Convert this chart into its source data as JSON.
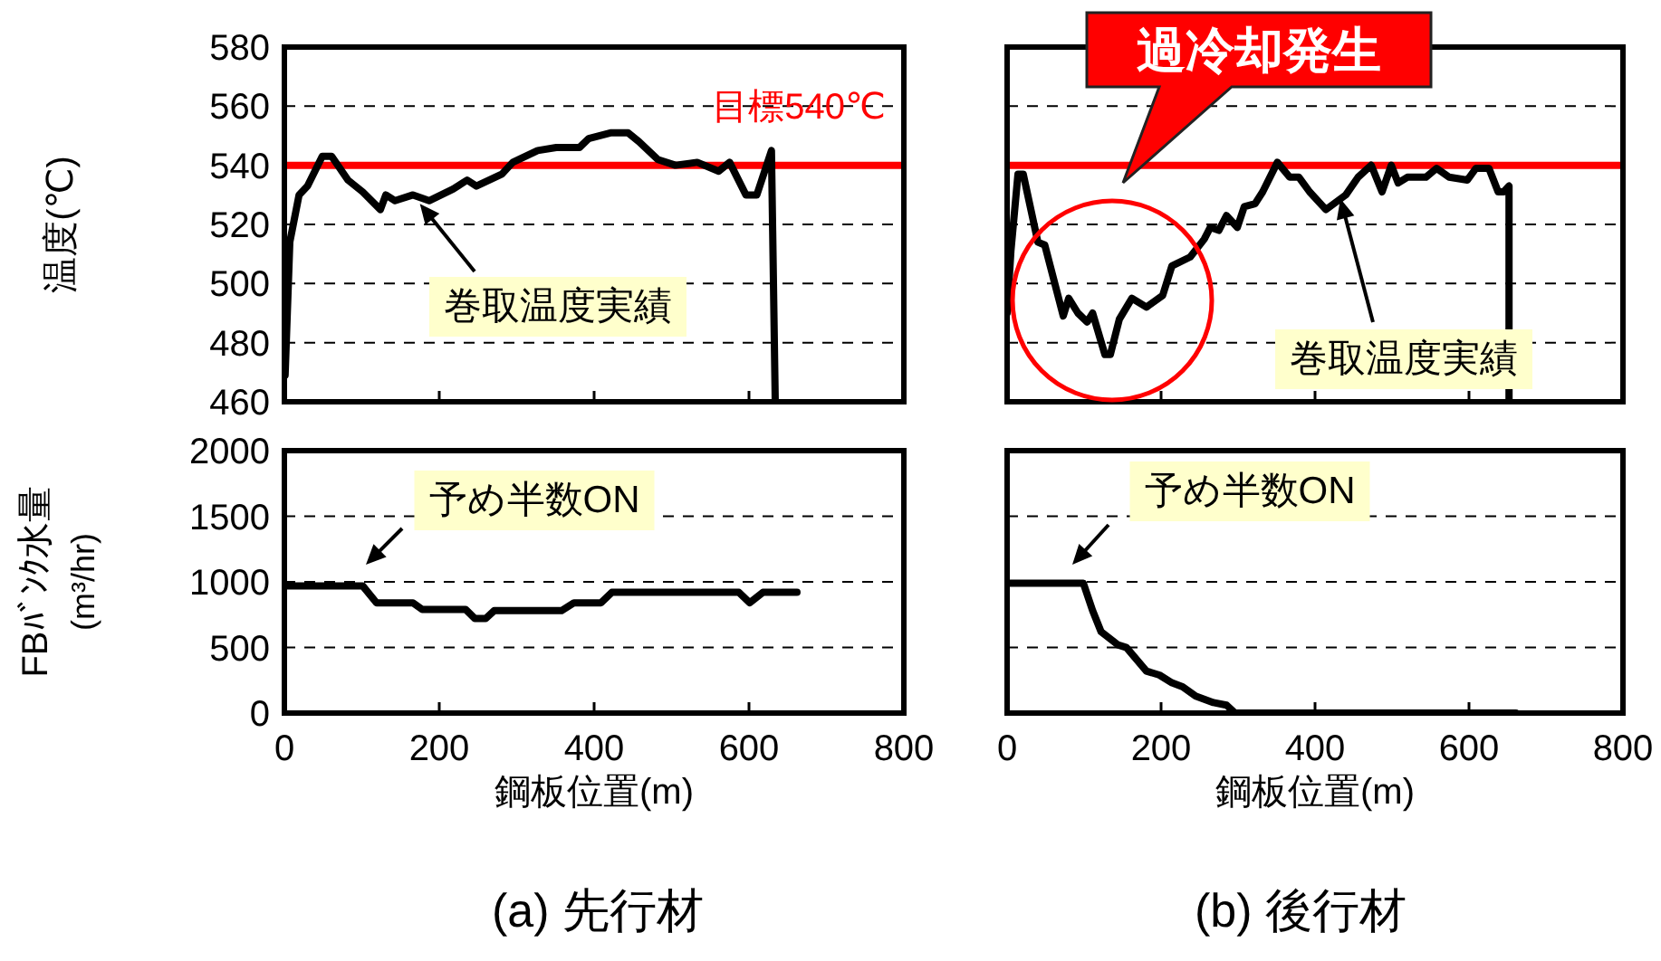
{
  "chart_data": [
    {
      "type": "line",
      "ylabel": "温度(℃)",
      "xlim": [
        0,
        800
      ],
      "xticks": [
        0,
        200,
        400,
        600,
        800
      ],
      "ylim": [
        460,
        580
      ],
      "yticks": [
        460,
        480,
        500,
        520,
        540,
        560,
        580
      ],
      "grid": "y",
      "tick_labels": "y",
      "series": [
        {
          "color": "#000000",
          "x": [
            1,
            7,
            19,
            30,
            49,
            61,
            82,
            101,
            124,
            131,
            143,
            166,
            187,
            218,
            236,
            248,
            281,
            295,
            327,
            351,
            381,
            393,
            421,
            444,
            458,
            482,
            505,
            533,
            561,
            575,
            596,
            610,
            629,
            634
          ],
          "values": [
            469,
            514,
            530,
            533,
            543,
            543,
            535,
            531,
            525,
            530,
            528,
            530,
            528,
            532,
            535,
            533,
            537,
            541,
            545,
            546,
            546,
            549,
            551,
            551,
            548,
            542,
            540,
            541,
            538,
            541,
            530,
            530,
            545,
            460
          ]
        }
      ],
      "ref_lines": [
        {
          "axis": "y",
          "value": 540,
          "label": "目標540℃",
          "color": "#ff0000"
        }
      ],
      "annotations": [
        {
          "text": "巻取温度実績",
          "x": 175,
          "y": 527
        }
      ]
    },
    {
      "type": "line",
      "xlim": [
        0,
        800
      ],
      "xticks": [
        0,
        200,
        400,
        600,
        800
      ],
      "ylim": [
        460,
        580
      ],
      "yticks": [
        460,
        480,
        500,
        520,
        540,
        560,
        580
      ],
      "grid": "y",
      "tick_labels": false,
      "series": [
        {
          "color": "#000000",
          "x": [
            0,
            5,
            14,
            21,
            40,
            49,
            73,
            80,
            92,
            104,
            111,
            127,
            134,
            146,
            162,
            181,
            202,
            214,
            238,
            256,
            264,
            275,
            285,
            299,
            308,
            322,
            332,
            351,
            367,
            379,
            393,
            414,
            440,
            456,
            473,
            487,
            499,
            508,
            520,
            544,
            558,
            574,
            598,
            609,
            626,
            638,
            645,
            652,
            652
          ],
          "values": [
            490,
            511,
            537,
            537,
            514,
            513,
            489,
            495,
            490,
            487,
            490,
            476,
            476,
            488,
            495,
            492,
            496,
            506,
            509,
            515,
            519,
            518,
            523,
            519,
            526,
            527,
            531,
            541,
            536,
            536,
            531,
            525,
            530,
            536,
            540,
            531,
            540,
            534,
            536,
            536,
            539,
            536,
            535,
            539,
            539,
            531,
            531,
            533,
            460
          ]
        }
      ],
      "ref_lines": [
        {
          "axis": "y",
          "value": 540,
          "color": "#ff0000"
        }
      ],
      "annotations": [
        {
          "text": "巻取温度実績",
          "x": 433,
          "y": 528.7
        },
        "過冷却発生"
      ]
    },
    {
      "type": "line",
      "xlabel": "鋼板位置(m)",
      "ylabel": "FBﾊﾞﾝｸ水量(m³/hr)",
      "xlim": [
        0,
        800
      ],
      "xticks": [
        0,
        200,
        400,
        600,
        800
      ],
      "ylim": [
        0,
        2000
      ],
      "yticks": [
        0,
        500,
        1000,
        1500,
        2000
      ],
      "grid": "y",
      "series": [
        {
          "color": "#000000",
          "x": [
            0,
            101,
            119,
            166,
            178,
            234,
            246,
            260,
            271,
            358,
            374,
            409,
            423,
            587,
            601,
            618,
            662
          ],
          "values": [
            970,
            970,
            840,
            840,
            790,
            790,
            720,
            720,
            780,
            780,
            840,
            840,
            920,
            920,
            840,
            920,
            920
          ]
        }
      ],
      "annotations": [
        "予め半数ON",
        "(a) 先行材"
      ]
    },
    {
      "type": "line",
      "xlabel": "鋼板位置(m)",
      "xlim": [
        0,
        800
      ],
      "xticks": [
        0,
        200,
        400,
        600,
        800
      ],
      "ylim": [
        0,
        2000
      ],
      "yticks": [
        0,
        500,
        1000,
        1500,
        2000
      ],
      "grid": "y",
      "tick_labels": "x",
      "series": [
        {
          "color": "#000000",
          "x": [
            0,
            99,
            111,
            122,
            144,
            155,
            181,
            198,
            214,
            228,
            245,
            268,
            285,
            296,
            661
          ],
          "values": [
            990,
            990,
            780,
            620,
            520,
            500,
            320,
            290,
            230,
            200,
            130,
            80,
            60,
            0,
            0
          ]
        }
      ],
      "annotations": [
        "予め半数ON",
        "(b) 後行材"
      ]
    }
  ]
}
